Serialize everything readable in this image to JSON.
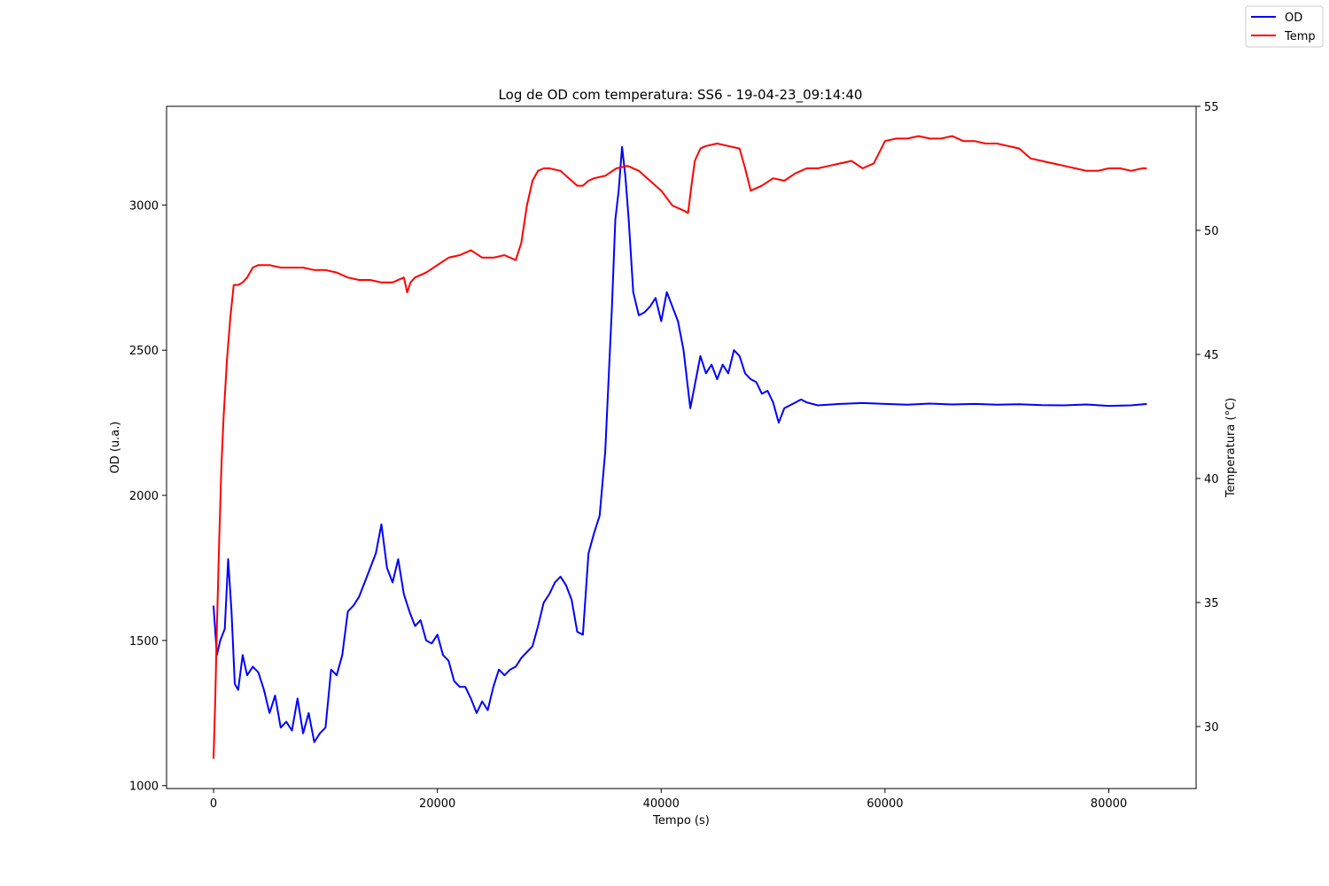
{
  "chart_data": {
    "type": "line",
    "title": "Log de OD com temperatura: SS6 - 19-04-23_09:14:40",
    "xlabel": "Tempo (s)",
    "ylabel_left": "OD (u.a.)",
    "ylabel_right": "Temperatura (°C)",
    "xlim": [
      -4200,
      87800
    ],
    "ylim_left": [
      990,
      3340
    ],
    "ylim_right": [
      27.5,
      55
    ],
    "xticks": [
      0,
      20000,
      40000,
      60000,
      80000
    ],
    "yticks_left": [
      1000,
      1500,
      2000,
      2500,
      3000
    ],
    "yticks_right": [
      30,
      35,
      40,
      45,
      50,
      55
    ],
    "grid": false,
    "legend": "top-right (outside)",
    "series": [
      {
        "name": "OD",
        "axis": "left",
        "color": "#0000ff",
        "x": [
          0,
          300,
          600,
          1000,
          1300,
          1600,
          1900,
          2200,
          2600,
          3000,
          3500,
          4000,
          4500,
          5000,
          5500,
          6000,
          6500,
          7000,
          7500,
          8000,
          8500,
          9000,
          9500,
          10000,
          10500,
          11000,
          11500,
          12000,
          12500,
          13000,
          13500,
          14000,
          14500,
          15000,
          15500,
          16000,
          16500,
          17000,
          17500,
          18000,
          18500,
          19000,
          19500,
          20000,
          20500,
          21000,
          21500,
          22000,
          22500,
          23000,
          23500,
          24000,
          24500,
          25000,
          25500,
          26000,
          26500,
          27000,
          27500,
          28000,
          28500,
          29000,
          29500,
          30000,
          30500,
          31000,
          31500,
          32000,
          32500,
          33000,
          33500,
          34000,
          34500,
          35000,
          35300,
          35600,
          35900,
          36200,
          36500,
          36800,
          37100,
          37500,
          38000,
          38500,
          39000,
          39500,
          40000,
          40500,
          41000,
          41500,
          42000,
          42300,
          42600,
          43000,
          43500,
          44000,
          44500,
          45000,
          45500,
          46000,
          46500,
          47000,
          47500,
          48000,
          48500,
          49000,
          49500,
          50000,
          50500,
          51000,
          51500,
          52000,
          52500,
          53000,
          54000,
          56000,
          58000,
          60000,
          62000,
          64000,
          66000,
          68000,
          70000,
          72000,
          74000,
          76000,
          78000,
          80000,
          82000,
          83400
        ],
        "y": [
          1620,
          1450,
          1500,
          1540,
          1780,
          1600,
          1350,
          1330,
          1450,
          1380,
          1410,
          1390,
          1330,
          1250,
          1310,
          1200,
          1220,
          1190,
          1300,
          1180,
          1250,
          1150,
          1180,
          1200,
          1400,
          1380,
          1450,
          1600,
          1620,
          1650,
          1700,
          1750,
          1800,
          1900,
          1750,
          1700,
          1780,
          1660,
          1600,
          1550,
          1570,
          1500,
          1490,
          1520,
          1450,
          1430,
          1360,
          1340,
          1340,
          1300,
          1250,
          1290,
          1260,
          1340,
          1400,
          1380,
          1400,
          1410,
          1440,
          1460,
          1480,
          1550,
          1630,
          1660,
          1700,
          1720,
          1690,
          1640,
          1530,
          1520,
          1800,
          1870,
          1930,
          2150,
          2400,
          2650,
          2950,
          3050,
          3200,
          3100,
          2950,
          2700,
          2620,
          2630,
          2650,
          2680,
          2600,
          2700,
          2650,
          2600,
          2500,
          2400,
          2300,
          2380,
          2480,
          2420,
          2450,
          2400,
          2450,
          2420,
          2500,
          2480,
          2420,
          2400,
          2390,
          2350,
          2360,
          2320,
          2250,
          2300,
          2310,
          2320,
          2330,
          2320,
          2310,
          2315,
          2318,
          2315,
          2312,
          2316,
          2313,
          2315,
          2312,
          2314,
          2311,
          2310,
          2313,
          2308,
          2310,
          2315
        ]
      },
      {
        "name": "Temp",
        "axis": "right",
        "color": "#ff0000",
        "x": [
          0,
          150,
          300,
          500,
          700,
          900,
          1200,
          1500,
          1800,
          2200,
          2600,
          3000,
          3500,
          4000,
          4500,
          5000,
          6000,
          7000,
          8000,
          9000,
          10000,
          11000,
          12000,
          13000,
          14000,
          15000,
          16000,
          17000,
          17300,
          17600,
          18000,
          19000,
          20000,
          21000,
          22000,
          23000,
          24000,
          25000,
          26000,
          27000,
          27500,
          28000,
          28500,
          29000,
          29500,
          30000,
          31000,
          32000,
          32500,
          33000,
          33500,
          34000,
          35000,
          36000,
          37000,
          38000,
          39000,
          40000,
          41000,
          42000,
          42400,
          42700,
          43000,
          43500,
          44000,
          45000,
          46000,
          47000,
          47500,
          48000,
          49000,
          50000,
          51000,
          52000,
          53000,
          54000,
          55000,
          56000,
          57000,
          58000,
          59000,
          60000,
          61000,
          62000,
          63000,
          64000,
          65000,
          66000,
          67000,
          68000,
          69000,
          70000,
          71000,
          72000,
          73000,
          74000,
          75000,
          76000,
          77000,
          78000,
          79000,
          80000,
          81000,
          82000,
          83000,
          83400
        ],
        "y": [
          28.7,
          31.0,
          34.0,
          37.5,
          40.5,
          42.5,
          44.8,
          46.5,
          47.8,
          47.8,
          47.9,
          48.1,
          48.5,
          48.6,
          48.6,
          48.6,
          48.5,
          48.5,
          48.5,
          48.4,
          48.4,
          48.3,
          48.1,
          48.0,
          48.0,
          47.9,
          47.9,
          48.1,
          47.5,
          47.9,
          48.1,
          48.3,
          48.6,
          48.9,
          49.0,
          49.2,
          48.9,
          48.9,
          49.0,
          48.8,
          49.5,
          51.0,
          52.0,
          52.4,
          52.5,
          52.5,
          52.4,
          52.0,
          51.8,
          51.8,
          52.0,
          52.1,
          52.2,
          52.5,
          52.6,
          52.4,
          52.0,
          51.6,
          51.0,
          50.8,
          50.7,
          51.8,
          52.8,
          53.3,
          53.4,
          53.5,
          53.4,
          53.3,
          52.5,
          51.6,
          51.8,
          52.1,
          52.0,
          52.3,
          52.5,
          52.5,
          52.6,
          52.7,
          52.8,
          52.5,
          52.7,
          53.6,
          53.7,
          53.7,
          53.8,
          53.7,
          53.7,
          53.8,
          53.6,
          53.6,
          53.5,
          53.5,
          53.4,
          53.3,
          52.9,
          52.8,
          52.7,
          52.6,
          52.5,
          52.4,
          52.4,
          52.5,
          52.5,
          52.4,
          52.5,
          52.5
        ]
      }
    ]
  }
}
